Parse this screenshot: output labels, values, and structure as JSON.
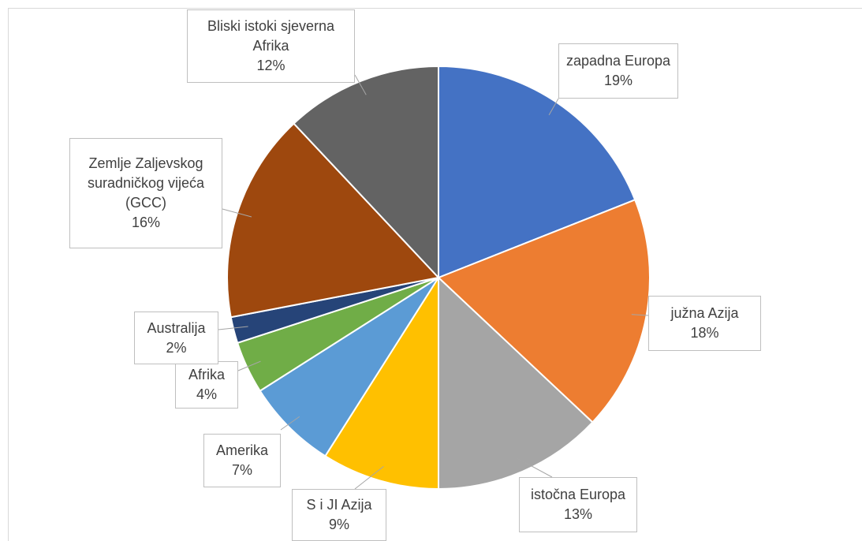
{
  "chart_data": {
    "type": "pie",
    "categories": [
      "zapadna Europa",
      "južna Azija",
      "istočna Europa",
      "S i JI Azija",
      "Amerika",
      "Afrika",
      "Australija",
      "Zemlje Zaljevskog suradničkog vijeća (GCC)",
      "Bliski istoki sjeverna Afrika"
    ],
    "values": [
      19,
      18,
      13,
      9,
      7,
      4,
      2,
      16,
      12
    ],
    "value_labels": [
      "19%",
      "18%",
      "13%",
      "9%",
      "7%",
      "4%",
      "2%",
      "16%",
      "12%"
    ],
    "colors": [
      "#4472c4",
      "#ed7d31",
      "#a5a5a5",
      "#ffc000",
      "#5b9bd5",
      "#70ad47",
      "#264478",
      "#9e480e",
      "#636363"
    ]
  }
}
